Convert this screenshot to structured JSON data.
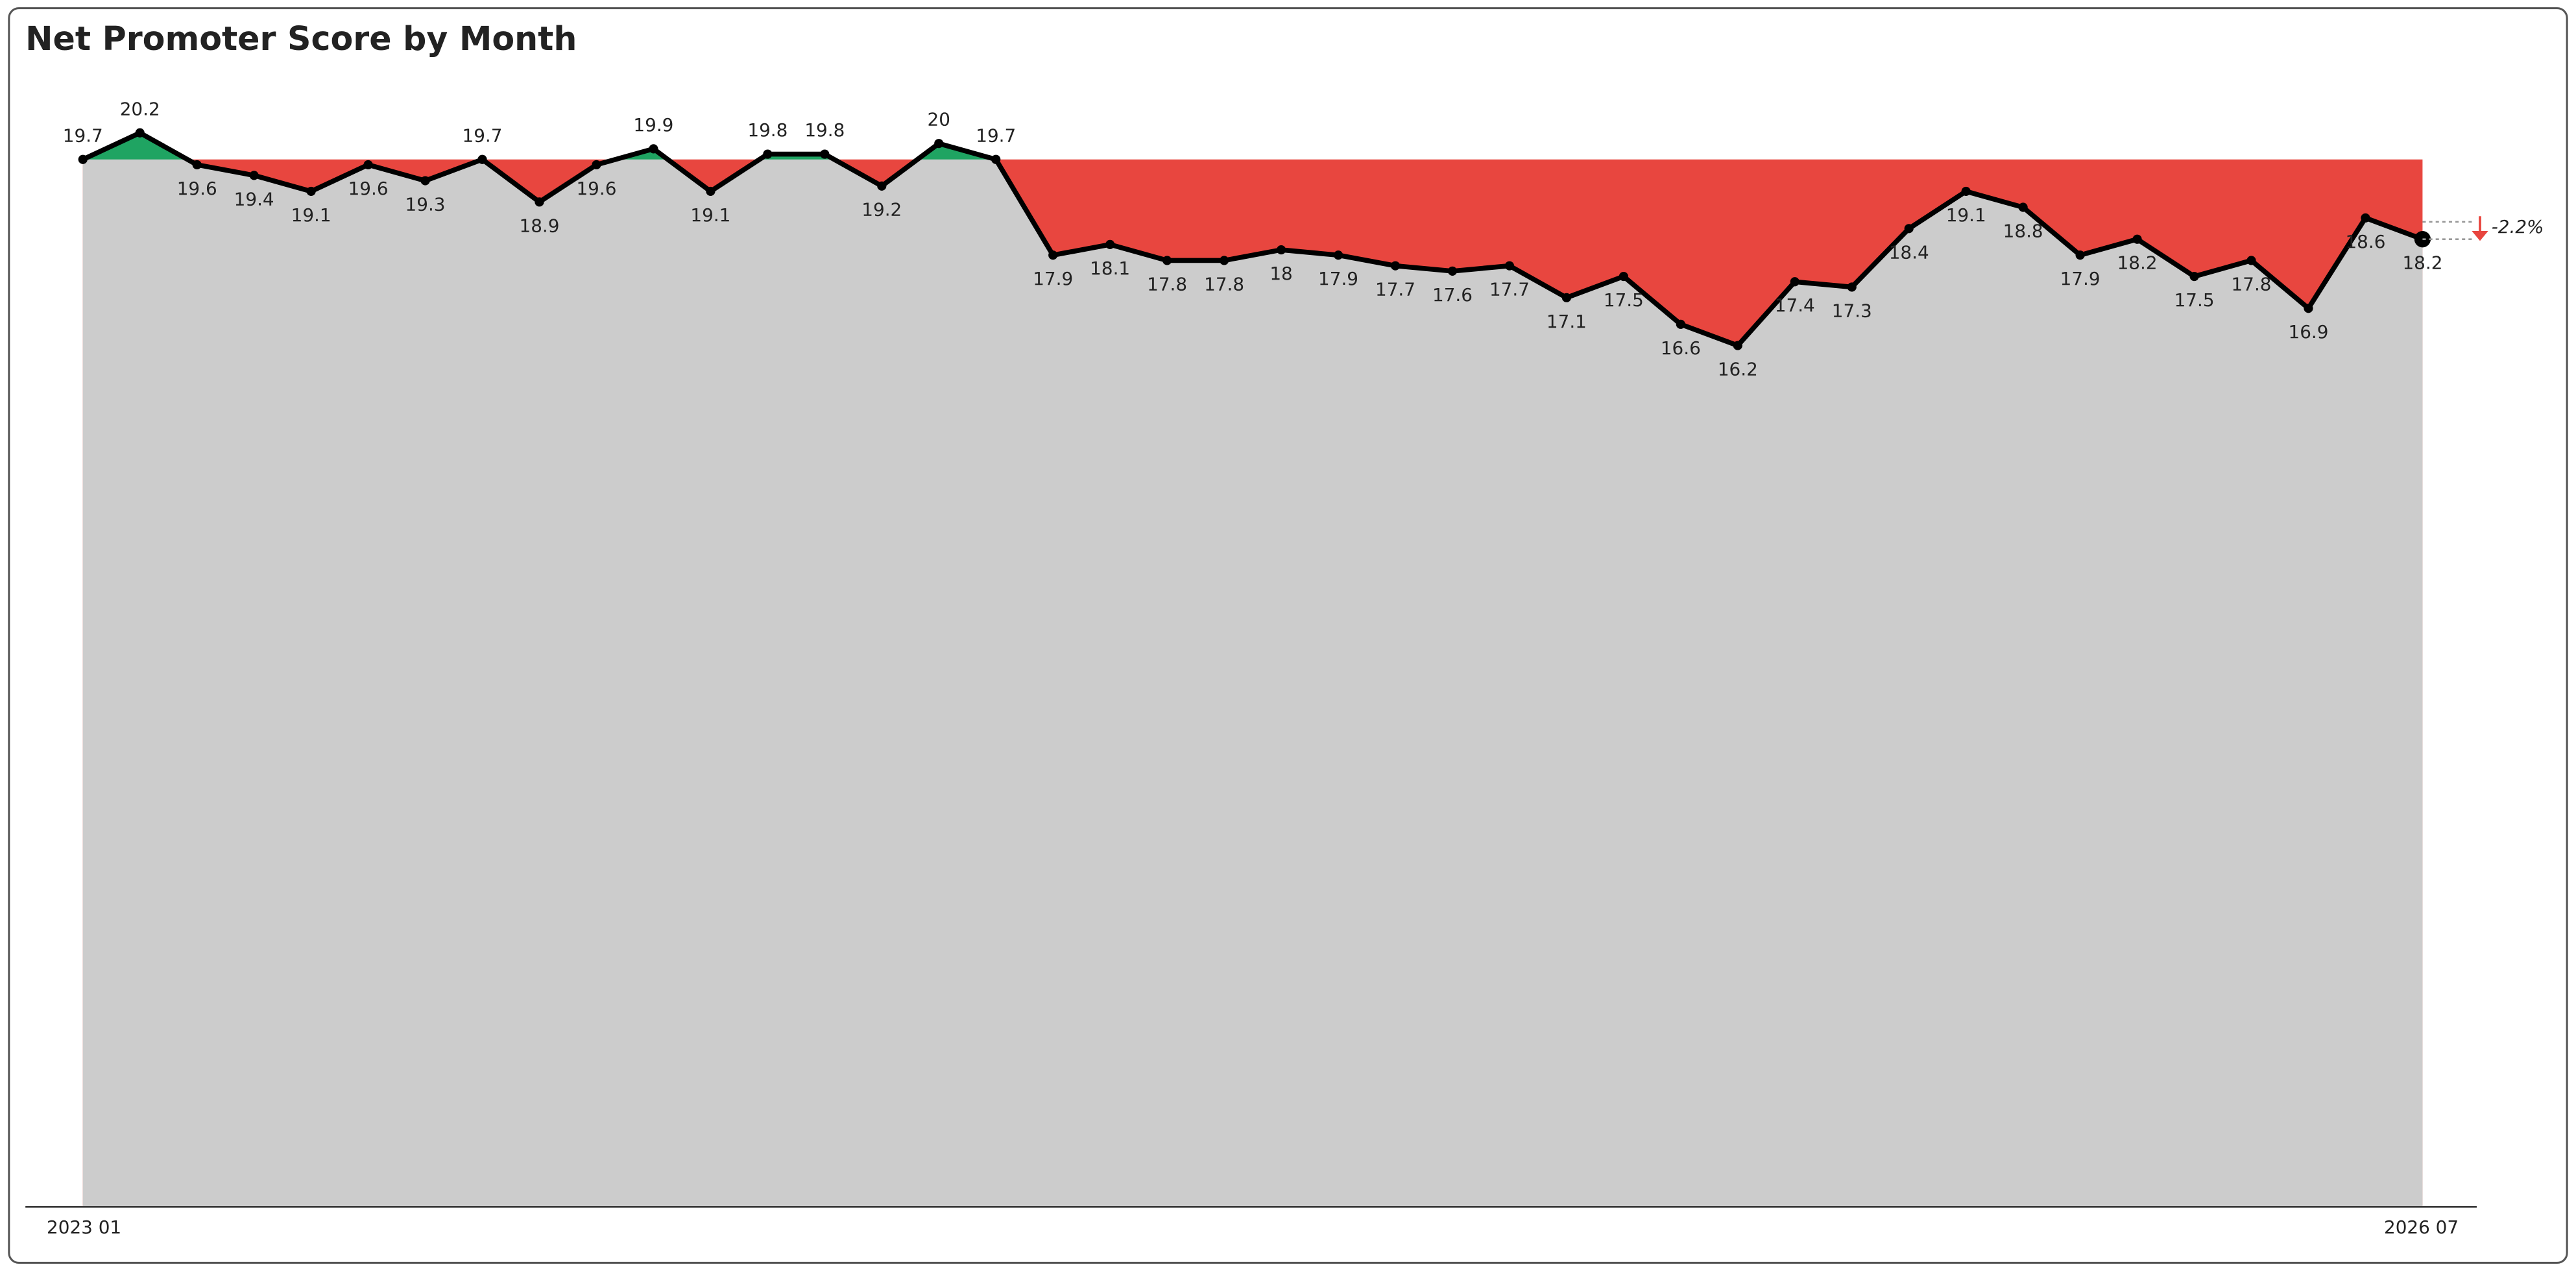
{
  "chart_data": {
    "type": "line",
    "title": "Net Promoter Score by Month",
    "categories": [
      "2023 01",
      null,
      null,
      null,
      null,
      null,
      null,
      null,
      null,
      null,
      null,
      null,
      null,
      null,
      null,
      null,
      null,
      null,
      null,
      null,
      null,
      null,
      null,
      null,
      null,
      null,
      null,
      null,
      null,
      null,
      null,
      null,
      null,
      null,
      null,
      null,
      null,
      null,
      null,
      null,
      null,
      "2026 07"
    ],
    "values": [
      19.7,
      20.2,
      19.6,
      19.4,
      19.1,
      19.6,
      19.3,
      19.7,
      18.9,
      19.6,
      19.9,
      19.1,
      19.8,
      19.8,
      19.2,
      20.0,
      19.7,
      17.9,
      18.1,
      17.8,
      17.8,
      18.0,
      17.9,
      17.7,
      17.6,
      17.7,
      17.1,
      17.5,
      16.6,
      16.2,
      17.4,
      17.3,
      18.4,
      19.1,
      18.8,
      17.9,
      18.2,
      17.5,
      17.8,
      16.9,
      18.6,
      18.2
    ],
    "ylim": [
      0,
      21
    ],
    "annotation": "-2.2%",
    "color": "#000000",
    "area_color": "#cccccc",
    "above_color": "#1fa462",
    "below_color": "#e8463f"
  }
}
